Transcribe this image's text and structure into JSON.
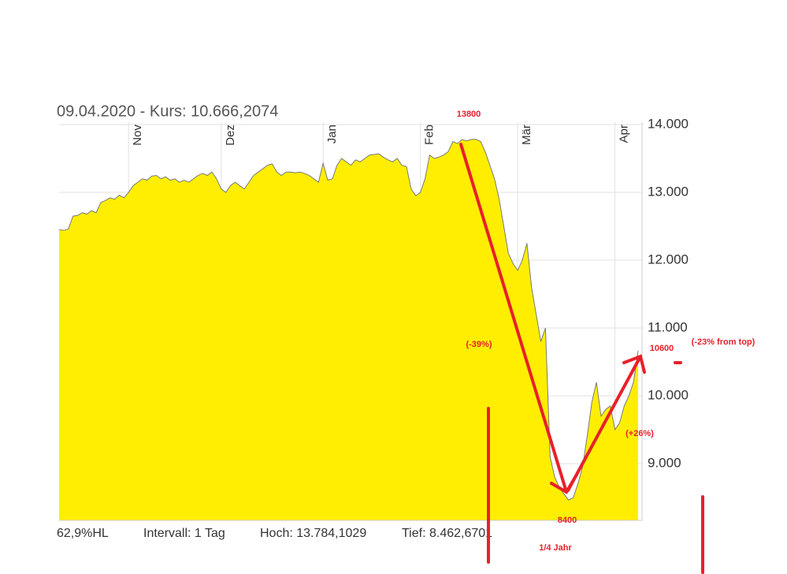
{
  "chart_data": {
    "type": "area",
    "title": "09.04.2020  - Kurs: 10.666,2074",
    "footer": [
      "62,9%HL",
      "Intervall: 1 Tag",
      "Hoch: 13.784,1029",
      "Tief: 8.462,6701"
    ],
    "annotations": [
      "13800",
      "(-39%)",
      "10600",
      "(-23% from top)",
      "(+26%)",
      "8400",
      "1/4 Jahr"
    ],
    "color": "#ffee00",
    "line_color": "#7a7a7a",
    "grid": true,
    "ylim": [
      8163,
      14035
    ],
    "yticks": [
      {
        "value": 9000,
        "label": "9.000"
      },
      {
        "value": 10000,
        "label": "10.000"
      },
      {
        "value": 11000,
        "label": "11.000"
      },
      {
        "value": 12000,
        "label": "12.000"
      },
      {
        "value": 13000,
        "label": "13.000"
      },
      {
        "value": 14000,
        "label": "14.000"
      }
    ],
    "categories": [
      null,
      null,
      null,
      null,
      null,
      null,
      null,
      null,
      null,
      null,
      null,
      null,
      null,
      null,
      null,
      "Nov",
      null,
      null,
      null,
      null,
      null,
      null,
      null,
      null,
      null,
      null,
      null,
      null,
      null,
      null,
      null,
      null,
      null,
      null,
      null,
      "Dez",
      null,
      null,
      null,
      null,
      null,
      null,
      null,
      null,
      null,
      null,
      null,
      null,
      null,
      null,
      null,
      null,
      null,
      null,
      null,
      null,
      null,
      "Jan",
      null,
      null,
      null,
      null,
      null,
      null,
      null,
      null,
      null,
      null,
      null,
      null,
      null,
      null,
      null,
      null,
      null,
      null,
      null,
      null,
      "Feb",
      null,
      null,
      null,
      null,
      null,
      null,
      null,
      null,
      null,
      null,
      null,
      null,
      null,
      null,
      null,
      null,
      null,
      null,
      null,
      null,
      "Mär",
      null,
      null,
      null,
      null,
      null,
      null,
      null,
      null,
      null,
      null,
      null,
      null,
      null,
      null,
      null,
      null,
      null,
      null,
      null,
      null,
      "Apr",
      null,
      null,
      null,
      null,
      null
    ],
    "values": [
      12450,
      12440,
      12460,
      12650,
      12660,
      12700,
      12680,
      12730,
      12700,
      12850,
      12880,
      12920,
      12900,
      12960,
      12920,
      13000,
      13100,
      13150,
      13200,
      13180,
      13240,
      13250,
      13200,
      13230,
      13180,
      13200,
      13150,
      13180,
      13150,
      13200,
      13250,
      13280,
      13250,
      13300,
      13200,
      13050,
      13000,
      13100,
      13150,
      13100,
      13050,
      13150,
      13250,
      13300,
      13350,
      13400,
      13420,
      13300,
      13250,
      13300,
      13300,
      13290,
      13300,
      13280,
      13250,
      13200,
      13150,
      13430,
      13180,
      13200,
      13400,
      13500,
      13450,
      13400,
      13480,
      13450,
      13500,
      13550,
      13560,
      13570,
      13520,
      13480,
      13450,
      13500,
      13400,
      13380,
      13050,
      12950,
      13000,
      13200,
      13550,
      13500,
      13520,
      13550,
      13600,
      13750,
      13720,
      13780,
      13760,
      13780,
      13784,
      13750,
      13600,
      13400,
      13200,
      12900,
      12500,
      12100,
      11950,
      11850,
      12000,
      12250,
      11600,
      11200,
      10800,
      11000,
      9100,
      8800,
      8650,
      8550,
      8463,
      8500,
      8700,
      8950,
      9400,
      9900,
      10200,
      9700,
      9800,
      9850,
      9500,
      9600,
      9850,
      10000,
      10200,
      10666
    ]
  }
}
